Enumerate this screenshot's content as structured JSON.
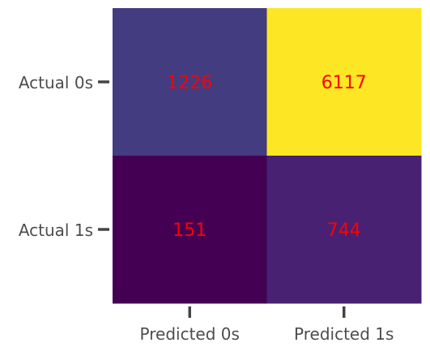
{
  "chart_data": {
    "type": "heatmap",
    "row_labels": [
      "Actual 0s",
      "Actual 1s"
    ],
    "col_labels": [
      "Predicted 0s",
      "Predicted 1s"
    ],
    "values": [
      [
        1226,
        6117
      ],
      [
        151,
        744
      ]
    ],
    "cell_colors": [
      [
        "#433c80",
        "#fde624"
      ],
      [
        "#440154",
        "#482172"
      ]
    ],
    "annotation_color": "#ff0000",
    "colormap": "viridis",
    "grid": false
  }
}
